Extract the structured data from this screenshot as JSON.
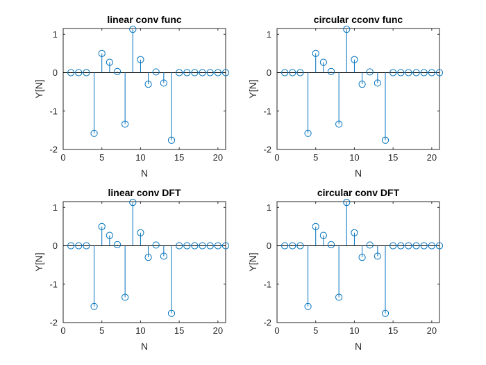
{
  "chart_data": [
    {
      "type": "stem",
      "title": "linear conv func",
      "xlabel": "N",
      "ylabel": "Y[N]",
      "xlim": [
        0,
        21
      ],
      "ylim": [
        -2,
        1.15
      ],
      "xticks": [
        0,
        5,
        10,
        15,
        20
      ],
      "yticks": [
        -2,
        -1,
        0,
        1
      ],
      "xtick_labels": [
        "0",
        "5",
        "10",
        "15",
        "20"
      ],
      "ytick_labels": [
        "-2",
        "-1",
        "0",
        "1"
      ],
      "grid": false,
      "series": [
        {
          "x": [
            1,
            2,
            3,
            4,
            5,
            6,
            7,
            8,
            9,
            10,
            11,
            12,
            13,
            14,
            15,
            16,
            17,
            18,
            19,
            20,
            21
          ],
          "y": [
            0,
            0,
            0,
            -1.58,
            0.5,
            0.27,
            0.03,
            -1.34,
            1.13,
            0.34,
            -0.3,
            0.02,
            -0.27,
            -1.76,
            0,
            0,
            0,
            0,
            0,
            0,
            0
          ]
        }
      ]
    },
    {
      "type": "stem",
      "title": "circular cconv func",
      "xlabel": "N",
      "ylabel": "Y[N]",
      "xlim": [
        0,
        21
      ],
      "ylim": [
        -2,
        1.15
      ],
      "xticks": [
        0,
        5,
        10,
        15,
        20
      ],
      "yticks": [
        -2,
        -1,
        0,
        1
      ],
      "xtick_labels": [
        "0",
        "5",
        "10",
        "15",
        "20"
      ],
      "ytick_labels": [
        "-2",
        "-1",
        "0",
        "1"
      ],
      "grid": false,
      "series": [
        {
          "x": [
            1,
            2,
            3,
            4,
            5,
            6,
            7,
            8,
            9,
            10,
            11,
            12,
            13,
            14,
            15,
            16,
            17,
            18,
            19,
            20,
            21
          ],
          "y": [
            0,
            0,
            0,
            -1.58,
            0.5,
            0.27,
            0.03,
            -1.34,
            1.13,
            0.34,
            -0.3,
            0.02,
            -0.27,
            -1.76,
            0,
            0,
            0,
            0,
            0,
            0,
            0
          ]
        }
      ]
    },
    {
      "type": "stem",
      "title": "linear conv DFT",
      "xlabel": "N",
      "ylabel": "Y[N]",
      "xlim": [
        0,
        21
      ],
      "ylim": [
        -2,
        1.15
      ],
      "xticks": [
        0,
        5,
        10,
        15,
        20
      ],
      "yticks": [
        -2,
        -1,
        0,
        1
      ],
      "xtick_labels": [
        "0",
        "5",
        "10",
        "15",
        "20"
      ],
      "ytick_labels": [
        "-2",
        "-1",
        "0",
        "1"
      ],
      "grid": false,
      "series": [
        {
          "x": [
            1,
            2,
            3,
            4,
            5,
            6,
            7,
            8,
            9,
            10,
            11,
            12,
            13,
            14,
            15,
            16,
            17,
            18,
            19,
            20,
            21
          ],
          "y": [
            0,
            0,
            0,
            -1.58,
            0.5,
            0.27,
            0.03,
            -1.34,
            1.13,
            0.34,
            -0.3,
            0.02,
            -0.27,
            -1.76,
            0,
            0,
            0,
            0,
            0,
            0,
            0
          ]
        }
      ]
    },
    {
      "type": "stem",
      "title": "circular conv DFT",
      "xlabel": "N",
      "ylabel": "Y[N]",
      "xlim": [
        0,
        21
      ],
      "ylim": [
        -2,
        1.15
      ],
      "xticks": [
        0,
        5,
        10,
        15,
        20
      ],
      "yticks": [
        -2,
        -1,
        0,
        1
      ],
      "xtick_labels": [
        "0",
        "5",
        "10",
        "15",
        "20"
      ],
      "ytick_labels": [
        "-2",
        "-1",
        "0",
        "1"
      ],
      "grid": false,
      "series": [
        {
          "x": [
            1,
            2,
            3,
            4,
            5,
            6,
            7,
            8,
            9,
            10,
            11,
            12,
            13,
            14,
            15,
            16,
            17,
            18,
            19,
            20,
            21
          ],
          "y": [
            0,
            0,
            0,
            -1.58,
            0.5,
            0.27,
            0.03,
            -1.34,
            1.13,
            0.34,
            -0.3,
            0.02,
            -0.27,
            -1.76,
            0,
            0,
            0,
            0,
            0,
            0,
            0
          ]
        }
      ]
    }
  ],
  "colors": {
    "stem": "#0072BD",
    "axis": "#262626",
    "background": "#ffffff"
  }
}
